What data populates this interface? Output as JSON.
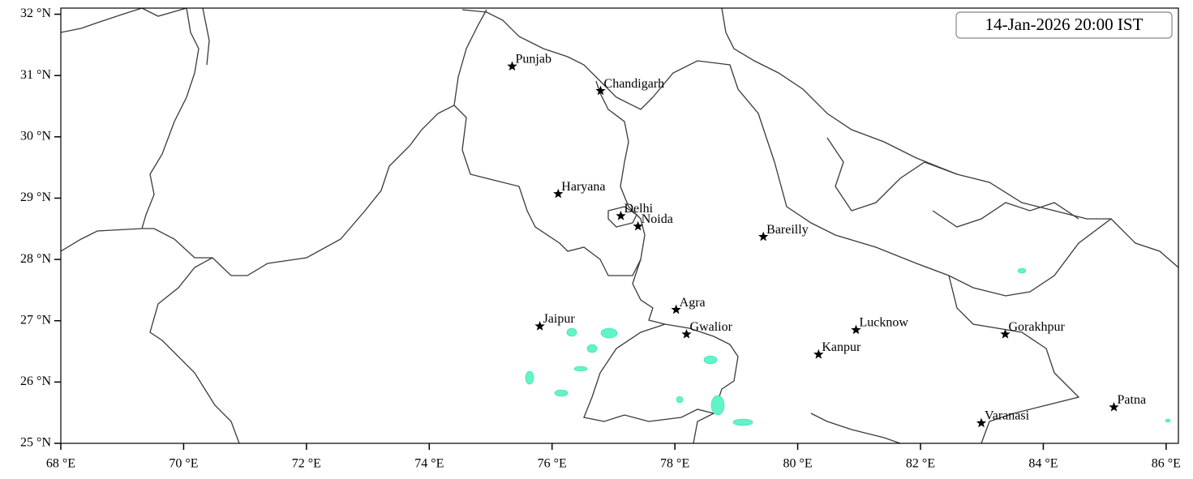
{
  "chart_data": {
    "type": "map",
    "title": "14-Jan-2026 20:00 IST",
    "xlim": [
      68,
      86.2
    ],
    "ylim": [
      25,
      32.1
    ],
    "xticks": [
      {
        "value": 68,
        "label": "68 °E"
      },
      {
        "value": 70,
        "label": "70 °E"
      },
      {
        "value": 72,
        "label": "72 °E"
      },
      {
        "value": 74,
        "label": "74 °E"
      },
      {
        "value": 76,
        "label": "76 °E"
      },
      {
        "value": 78,
        "label": "78 °E"
      },
      {
        "value": 80,
        "label": "80 °E"
      },
      {
        "value": 82,
        "label": "82 °E"
      },
      {
        "value": 84,
        "label": "84 °E"
      },
      {
        "value": 86,
        "label": "86 °E"
      }
    ],
    "yticks": [
      {
        "value": 25,
        "label": "25 °N"
      },
      {
        "value": 26,
        "label": "26 °N"
      },
      {
        "value": 27,
        "label": "27 °N"
      },
      {
        "value": 28,
        "label": "28 °N"
      },
      {
        "value": 29,
        "label": "29 °N"
      },
      {
        "value": 30,
        "label": "30 °N"
      },
      {
        "value": 31,
        "label": "31 °N"
      },
      {
        "value": 32,
        "label": "32 °N"
      }
    ],
    "cities": {
      "names": [
        "Punjab",
        "Chandigarh",
        "Haryana",
        "Delhi",
        "Noida",
        "Bareilly",
        "Agra",
        "Jaipur",
        "Gwalior",
        "Lucknow",
        "Kanpur",
        "Gorakhpur",
        "Patna",
        "Varanasi"
      ],
      "lon": [
        75.35,
        76.79,
        76.1,
        77.12,
        77.4,
        79.44,
        78.02,
        75.8,
        78.19,
        80.95,
        80.34,
        83.38,
        85.15,
        82.99
      ],
      "lat": [
        31.15,
        30.75,
        29.07,
        28.71,
        28.54,
        28.37,
        27.18,
        26.91,
        26.78,
        26.85,
        26.45,
        26.78,
        25.59,
        25.33
      ],
      "color": "#000000"
    }
  }
}
